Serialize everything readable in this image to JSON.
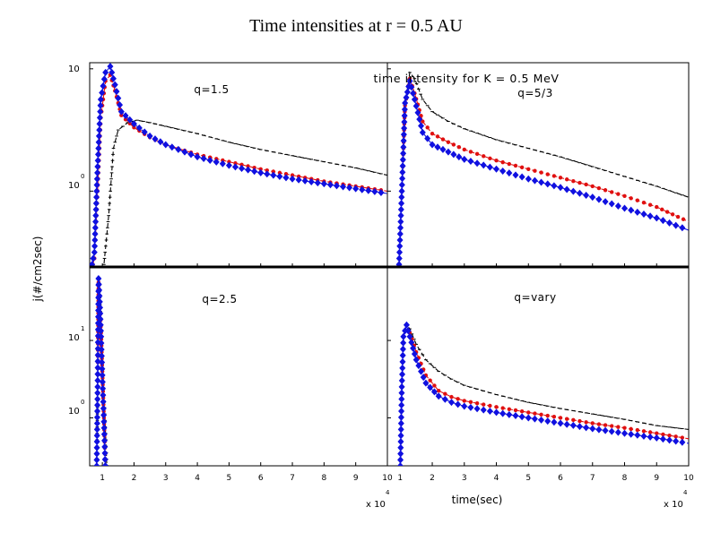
{
  "page_title": "Time intensities at r = 0.5 AU",
  "colors": {
    "black": "#000000",
    "red": "#e01010",
    "blue": "#1010e0"
  },
  "figure": {
    "main_title": "time intensity for K = 0.5 MeV",
    "ylabel": "j(#/cm2sec)",
    "xlabel": "time(sec)",
    "x_exponent_label": "x 10",
    "x_exponent_power": "4"
  },
  "chart_data": [
    {
      "type": "line",
      "panel": "top-left",
      "annotation": "q=1.5",
      "xlim": [
        0.6,
        10
      ],
      "xticks": [
        1,
        2,
        3,
        4,
        5,
        6,
        7,
        8,
        9,
        10
      ],
      "y_axis": "log",
      "ylim_log10": [
        -0.62,
        1.05
      ],
      "ytick_labels": [
        {
          "label": "10",
          "exp": "",
          "y": 1
        },
        {
          "label": "10",
          "exp": "0",
          "y": 0
        }
      ],
      "series": [
        {
          "name": "black",
          "color": "#000000",
          "marker": "tick",
          "x": [
            0.9,
            1.05,
            1.2,
            1.35,
            1.5,
            1.8,
            2.1,
            2.5,
            3,
            4,
            5,
            6,
            7,
            8,
            9,
            10
          ],
          "y": [
            -0.7,
            -0.6,
            -0.2,
            0.35,
            0.5,
            0.56,
            0.58,
            0.56,
            0.53,
            0.47,
            0.4,
            0.34,
            0.29,
            0.24,
            0.19,
            0.13
          ]
        },
        {
          "name": "red",
          "color": "#e01010",
          "marker": "dot",
          "x": [
            0.6,
            0.75,
            0.85,
            0.95,
            1.1,
            1.25,
            1.4,
            1.6,
            2,
            2.5,
            3,
            4,
            5,
            6,
            7,
            8,
            9,
            10
          ],
          "y": [
            -0.7,
            -0.55,
            0.0,
            0.6,
            0.9,
            0.95,
            0.82,
            0.62,
            0.52,
            0.44,
            0.38,
            0.3,
            0.24,
            0.18,
            0.13,
            0.08,
            0.04,
            0.0
          ]
        },
        {
          "name": "blue",
          "color": "#1010e0",
          "marker": "diamond",
          "x": [
            0.6,
            0.75,
            0.85,
            0.95,
            1.1,
            1.25,
            1.4,
            1.6,
            2,
            2.5,
            3,
            4,
            5,
            6,
            7,
            8,
            9,
            10
          ],
          "y": [
            -0.7,
            -0.5,
            0.2,
            0.75,
            0.97,
            1.02,
            0.87,
            0.65,
            0.55,
            0.45,
            0.38,
            0.28,
            0.21,
            0.15,
            0.1,
            0.06,
            0.02,
            -0.02
          ]
        }
      ]
    },
    {
      "type": "line",
      "panel": "top-right",
      "annotation": "q=5/3",
      "xlim": [
        0.6,
        10
      ],
      "xticks": [
        1,
        2,
        3,
        4,
        5,
        6,
        7,
        8,
        9,
        10
      ],
      "y_axis": "log",
      "ylim_log10": [
        -0.62,
        1.05
      ],
      "ytick_labels": [],
      "series": [
        {
          "name": "black",
          "color": "#000000",
          "marker": "tick",
          "x": [
            0.95,
            1.05,
            1.15,
            1.3,
            1.45,
            1.7,
            2,
            2.5,
            3,
            4,
            5,
            6,
            7,
            8,
            9,
            10
          ],
          "y": [
            -0.7,
            0.0,
            0.7,
            0.97,
            0.92,
            0.75,
            0.65,
            0.57,
            0.51,
            0.42,
            0.35,
            0.28,
            0.2,
            0.12,
            0.04,
            -0.05
          ]
        },
        {
          "name": "red",
          "color": "#e01010",
          "marker": "dot",
          "x": [
            0.95,
            1.05,
            1.15,
            1.3,
            1.45,
            1.7,
            2,
            2.5,
            3,
            4,
            5,
            6,
            7,
            8,
            9,
            10
          ],
          "y": [
            -0.7,
            0.0,
            0.7,
            0.92,
            0.8,
            0.57,
            0.47,
            0.4,
            0.34,
            0.25,
            0.18,
            0.11,
            0.04,
            -0.04,
            -0.13,
            -0.25
          ]
        },
        {
          "name": "blue",
          "color": "#1010e0",
          "marker": "diamond",
          "x": [
            0.95,
            1.05,
            1.15,
            1.3,
            1.45,
            1.7,
            2,
            2.5,
            3,
            4,
            5,
            6,
            7,
            8,
            9,
            10
          ],
          "y": [
            -0.7,
            0.0,
            0.72,
            0.9,
            0.75,
            0.48,
            0.38,
            0.32,
            0.26,
            0.18,
            0.1,
            0.03,
            -0.05,
            -0.14,
            -0.22,
            -0.32
          ]
        }
      ]
    },
    {
      "type": "line",
      "panel": "bottom-left",
      "annotation": "q=2.5",
      "xlim": [
        0.6,
        10
      ],
      "xticks": [
        1,
        2,
        3,
        4,
        5,
        6,
        7,
        8,
        9,
        10
      ],
      "y_axis": "log",
      "ylim_log10": [
        -0.62,
        1.95
      ],
      "ytick_labels": [
        {
          "label": "10",
          "exp": "1",
          "y": 1
        },
        {
          "label": "10",
          "exp": "0",
          "y": 0
        }
      ],
      "series": [
        {
          "name": "black",
          "color": "#000000",
          "marker": "tick",
          "x": [
            0.82,
            0.85,
            0.88,
            0.92,
            0.96,
            1.0,
            1.05,
            1.1,
            1.15
          ],
          "y": [
            -0.7,
            0.3,
            1.7,
            1.55,
            1.2,
            0.8,
            0.3,
            -0.2,
            -0.7
          ]
        },
        {
          "name": "red",
          "color": "#e01010",
          "marker": "dot",
          "x": [
            0.82,
            0.85,
            0.88,
            0.92,
            0.96,
            1.0,
            1.05,
            1.1
          ],
          "y": [
            -0.7,
            0.4,
            1.75,
            1.5,
            1.1,
            0.6,
            0.0,
            -0.7
          ]
        },
        {
          "name": "blue",
          "color": "#1010e0",
          "marker": "diamond",
          "x": [
            0.82,
            0.85,
            0.88,
            0.92,
            0.96,
            1.0,
            1.05,
            1.1
          ],
          "y": [
            -0.7,
            0.4,
            1.8,
            1.5,
            1.05,
            0.55,
            -0.05,
            -0.7
          ]
        }
      ]
    },
    {
      "type": "line",
      "panel": "bottom-right",
      "annotation": "q=vary",
      "xlim": [
        0.6,
        10
      ],
      "xticks": [
        1,
        2,
        3,
        4,
        5,
        6,
        7,
        8,
        9,
        10
      ],
      "y_axis": "log",
      "ylim_log10": [
        -0.62,
        1.95
      ],
      "ytick_labels": [],
      "series": [
        {
          "name": "black",
          "color": "#000000",
          "marker": "tick",
          "x": [
            1.0,
            1.05,
            1.1,
            1.2,
            1.3,
            1.5,
            1.8,
            2.2,
            2.6,
            3,
            4,
            5,
            6,
            7,
            8,
            9,
            10
          ],
          "y": [
            -0.7,
            0.4,
            1.05,
            1.2,
            1.15,
            0.95,
            0.75,
            0.6,
            0.5,
            0.42,
            0.3,
            0.2,
            0.12,
            0.05,
            -0.02,
            -0.1,
            -0.15
          ]
        },
        {
          "name": "red",
          "color": "#e01010",
          "marker": "dot",
          "x": [
            1.0,
            1.05,
            1.1,
            1.2,
            1.3,
            1.5,
            1.8,
            2.2,
            2.6,
            3,
            4,
            5,
            6,
            7,
            8,
            9,
            10
          ],
          "y": [
            -0.7,
            0.4,
            1.05,
            1.2,
            1.1,
            0.85,
            0.55,
            0.35,
            0.27,
            0.22,
            0.14,
            0.07,
            0.0,
            -0.07,
            -0.13,
            -0.2,
            -0.27
          ]
        },
        {
          "name": "blue",
          "color": "#1010e0",
          "marker": "diamond",
          "x": [
            1.0,
            1.05,
            1.1,
            1.2,
            1.3,
            1.5,
            1.8,
            2.2,
            2.6,
            3,
            4,
            5,
            6,
            7,
            8,
            9,
            10
          ],
          "y": [
            -0.7,
            0.4,
            1.05,
            1.2,
            1.05,
            0.75,
            0.45,
            0.28,
            0.2,
            0.15,
            0.07,
            0.0,
            -0.07,
            -0.14,
            -0.2,
            -0.26,
            -0.33
          ]
        }
      ]
    }
  ]
}
